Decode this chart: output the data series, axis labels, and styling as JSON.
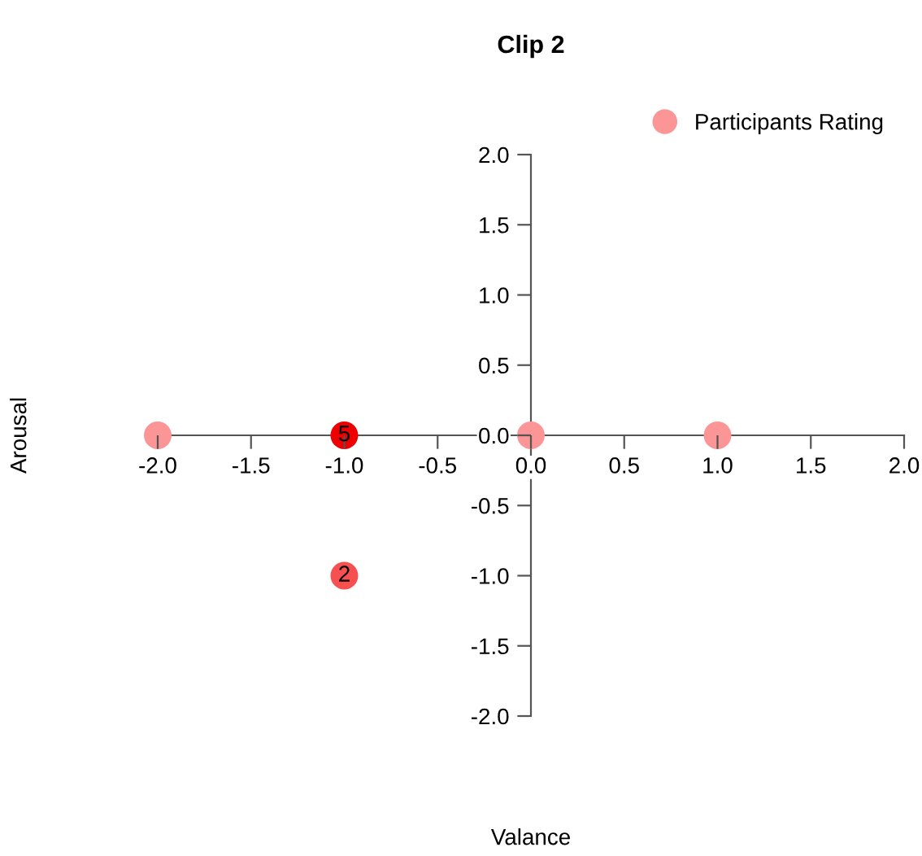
{
  "chart_data": {
    "type": "scatter",
    "title": "Clip 2",
    "xlabel": "Valance",
    "ylabel": "Arousal",
    "series": [
      {
        "name": "Participants Rating",
        "color": "#fb9596",
        "x": [
          -2,
          -1,
          0,
          1,
          -1
        ],
        "values": [
          0,
          0,
          0,
          0,
          -1
        ],
        "colors": [
          "#fb9596",
          "#ee0000",
          "#fb9596",
          "#fb9596",
          "#f85050"
        ]
      }
    ],
    "annotations": [
      {
        "text": "5",
        "x": -1,
        "y": 0
      },
      {
        "text": "2",
        "x": -1,
        "y": -1
      }
    ],
    "xlim": [
      -2,
      2
    ],
    "ylim": [
      -2,
      2
    ],
    "xticks": [
      {
        "value": -2,
        "label": "-2.0"
      },
      -1.5,
      {
        "value": -1,
        "label": "-1.0"
      },
      -0.5,
      {
        "value": 0,
        "label": "0.0"
      },
      0.5,
      {
        "value": 1,
        "label": "1.0"
      },
      1.5,
      {
        "value": 2,
        "label": "2.0"
      }
    ],
    "yticks": [
      {
        "value": -2,
        "label": "-2.0"
      },
      -1.5,
      {
        "value": -1,
        "label": "-1.0"
      },
      -0.5,
      {
        "value": 0,
        "label": "0.0"
      },
      0.5,
      {
        "value": 1,
        "label": "1.0"
      },
      1.5,
      {
        "value": 2,
        "label": "2.0"
      }
    ],
    "marker": "circle",
    "legend": "top right",
    "grid": false
  }
}
